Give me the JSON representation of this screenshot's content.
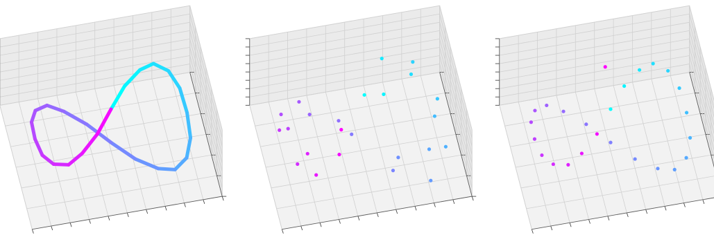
{
  "chart_data": [
    {
      "type": "line3d",
      "colormap": [
        "#00ffff",
        "#ff00ff"
      ],
      "xlim": [
        -5,
        5
      ],
      "ylim": [
        -3,
        3
      ],
      "zlim": [
        -3,
        5
      ],
      "xticks": [
        -5,
        -4,
        -3,
        -2,
        -1,
        0,
        1,
        2,
        3,
        4,
        5
      ],
      "yticks": [
        -3,
        -2,
        -1,
        0,
        1,
        2,
        3
      ],
      "zticks": [
        -3,
        -2,
        -1,
        0,
        1,
        2,
        3,
        4,
        5
      ],
      "x": [
        0,
        1.0,
        2.0,
        2.8,
        3.5,
        3.9,
        4.0,
        3.9,
        3.5,
        2.8,
        2.0,
        1.0,
        0,
        -1.0,
        -2.0,
        -2.8,
        -3.5,
        -3.9,
        -4.0,
        -3.9,
        -3.5,
        -2.8,
        -2.0,
        -1.0,
        0
      ],
      "y": [
        0,
        1.0,
        1.7,
        2.0,
        1.7,
        1.0,
        0,
        -1.0,
        -1.7,
        -2.0,
        -1.7,
        -1.0,
        0,
        1.0,
        1.7,
        2.0,
        1.7,
        1.0,
        0,
        -1.0,
        -1.7,
        -2.0,
        -1.7,
        -1.0,
        0
      ],
      "z": [
        2.0,
        1.9,
        1.7,
        1.4,
        1.0,
        0.5,
        0,
        -0.5,
        -1.0,
        -1.4,
        -1.7,
        -1.9,
        -2.0,
        -1.9,
        -1.7,
        -1.4,
        -1.0,
        -0.5,
        0,
        0.5,
        1.0,
        1.4,
        1.7,
        1.9,
        2.0
      ]
    },
    {
      "type": "scatter3d",
      "colormap": [
        "#00ffff",
        "#ff00ff"
      ],
      "xlim": [
        -5,
        5
      ],
      "ylim": [
        -3,
        3
      ],
      "zlim": [
        -3,
        5
      ],
      "xticks": [
        -5,
        -4,
        -3,
        -2,
        -1,
        0,
        1,
        2,
        3,
        4,
        5
      ],
      "yticks": [
        -3,
        -2,
        -1,
        0,
        1,
        2,
        3
      ],
      "zticks": [
        -3,
        -2,
        -1,
        0,
        1,
        2,
        3,
        4,
        5
      ],
      "x": [
        0.3,
        1.4,
        1.7,
        3.1,
        3.3,
        4.2,
        3.8,
        4.1,
        3.2,
        3.0,
        1.6,
        1.3,
        -0.4,
        -0.8,
        -2.3,
        -2.6,
        -3.8,
        -3.6,
        -4.2,
        -3.7,
        -3.2,
        -3.0,
        -1.7,
        -1.2
      ],
      "y": [
        0.4,
        0.7,
        2.1,
        1.6,
        2.0,
        0.6,
        -0.3,
        -1.3,
        -1.4,
        -2.4,
        -1.3,
        -1.4,
        0.3,
        1.3,
        1.4,
        2.3,
        1.4,
        0.8,
        0.3,
        -1.3,
        -1.4,
        -2.3,
        -2.0,
        -0.6
      ],
      "z": [
        2.6,
        1.5,
        2.2,
        1.0,
        1.4,
        0.1,
        0.4,
        -0.9,
        -0.6,
        -1.8,
        -1.2,
        -2.4,
        -1.6,
        -2.3,
        -1.2,
        -1.8,
        -0.6,
        -0.9,
        0.4,
        0.1,
        1.4,
        1.0,
        2.2,
        1.5
      ]
    },
    {
      "type": "scatter3d",
      "colormap": [
        "#00ffff",
        "#ff00ff"
      ],
      "xlim": [
        -5,
        5
      ],
      "ylim": [
        -3,
        3
      ],
      "zlim": [
        -3,
        5
      ],
      "xticks": [
        -5,
        -4,
        -3,
        -2,
        -1,
        0,
        1,
        2,
        3,
        4,
        5
      ],
      "yticks": [
        -3,
        -2,
        -1,
        0,
        1,
        2,
        3
      ],
      "zticks": [
        -3,
        -2,
        -1,
        0,
        1,
        2,
        3,
        4,
        5
      ],
      "x": [
        0,
        1.0,
        2.0,
        2.8,
        3.5,
        3.9,
        4.0,
        3.9,
        3.5,
        2.8,
        2.0,
        1.0,
        0,
        -1.0,
        -2.0,
        -2.8,
        -3.5,
        -3.9,
        -4.0,
        -3.9,
        -3.5,
        -2.8,
        -2.0,
        -1.0,
        0
      ],
      "y": [
        0,
        1.0,
        1.7,
        2.0,
        1.7,
        1.0,
        0,
        -1.0,
        -1.7,
        -2.0,
        -1.7,
        -1.0,
        0,
        1.0,
        1.7,
        2.0,
        1.7,
        1.0,
        0,
        -1.0,
        -1.7,
        -2.0,
        -1.7,
        -1.0,
        1.0
      ],
      "z": [
        2.0,
        1.9,
        1.7,
        1.4,
        1.0,
        0.5,
        0,
        -0.5,
        -1.0,
        -1.4,
        -1.7,
        -1.9,
        -2.0,
        -1.9,
        -1.7,
        -1.4,
        -1.0,
        -0.5,
        0,
        0.5,
        1.0,
        1.4,
        1.7,
        1.9,
        4.6
      ]
    }
  ]
}
